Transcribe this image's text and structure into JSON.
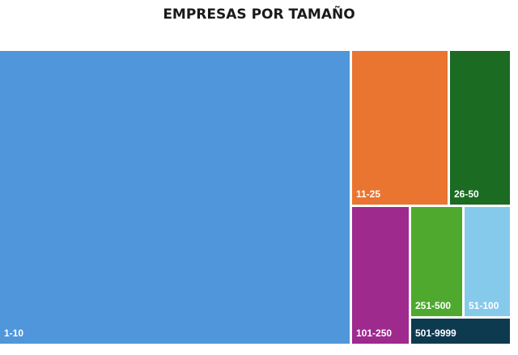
{
  "chart_data": {
    "type": "treemap",
    "title": "EMPRESAS POR TAMAÑO",
    "items": [
      {
        "label": "1-10",
        "value": 59.0,
        "color": "#4F96DA"
      },
      {
        "label": "11-25",
        "value": 8.4,
        "color": "#E97531"
      },
      {
        "label": "26-50",
        "value": 6.0,
        "color": "#1B6B22"
      },
      {
        "label": "101-250",
        "value": 6.0,
        "color": "#9E2A8E"
      },
      {
        "label": "251-500",
        "value": 4.2,
        "color": "#4FA92F"
      },
      {
        "label": "51-100",
        "value": 3.9,
        "color": "#86CAEB"
      },
      {
        "label": "501-9999",
        "value": 1.1,
        "color": "#0E3A50"
      }
    ]
  }
}
